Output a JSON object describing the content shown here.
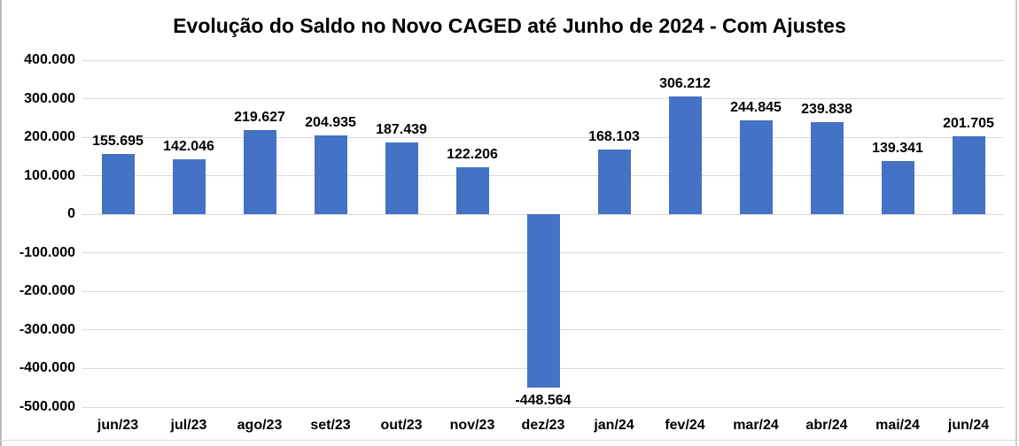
{
  "title": "Evolução do Saldo no Novo CAGED até Junho de 2024 - Com Ajustes",
  "chart_data": {
    "type": "bar",
    "title": "Evolução do Saldo no Novo CAGED até Junho de 2024 - Com Ajustes",
    "categories": [
      "jun/23",
      "jul/23",
      "ago/23",
      "set/23",
      "out/23",
      "nov/23",
      "dez/23",
      "jan/24",
      "fev/24",
      "mar/24",
      "abr/24",
      "mai/24",
      "jun/24"
    ],
    "values": [
      155695,
      142046,
      219627,
      204935,
      187439,
      122206,
      -448564,
      168103,
      306212,
      244845,
      239838,
      139341,
      201705
    ],
    "data_labels": [
      "155.695",
      "142.046",
      "219.627",
      "204.935",
      "187.439",
      "122.206",
      "-448.564",
      "168.103",
      "306.212",
      "244.845",
      "239.838",
      "139.341",
      "201.705"
    ],
    "y_tick_values": [
      400000,
      300000,
      200000,
      100000,
      0,
      -100000,
      -200000,
      -300000,
      -400000,
      -500000
    ],
    "y_tick_labels": [
      "400.000",
      "300.000",
      "200.000",
      "100.000",
      "0",
      "-100.000",
      "-200.000",
      "-300.000",
      "-400.000",
      "-500.000"
    ],
    "ylim": [
      -500000,
      400000
    ],
    "xlabel": "",
    "ylabel": "",
    "grid": "horizontal",
    "legend": "none",
    "colors": {
      "bar": "#4472C4",
      "gridline": "#D9D9D9",
      "text": "#000000",
      "background": "#FFFFFF"
    }
  }
}
